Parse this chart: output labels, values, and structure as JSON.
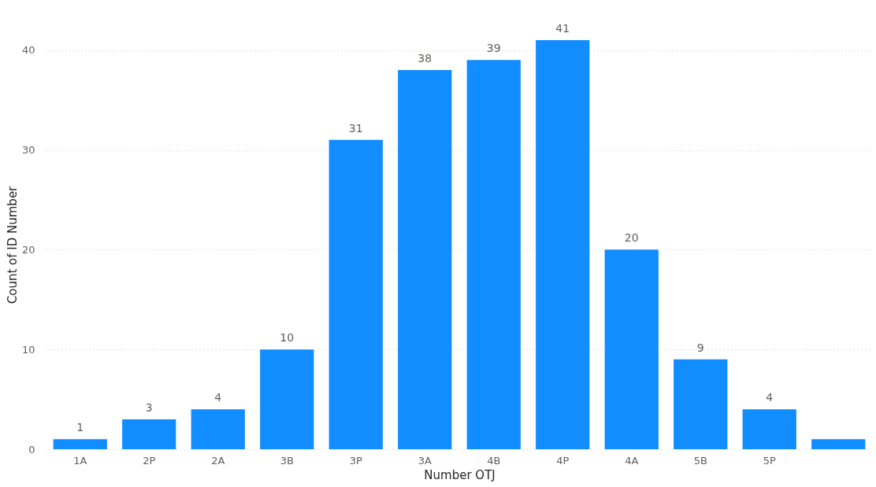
{
  "chart_data": {
    "type": "bar",
    "xlabel": "Number OTJ",
    "ylabel": "Count of ID Number",
    "categories": [
      "1A",
      "2P",
      "2A",
      "3B",
      "3P",
      "3A",
      "4B",
      "4P",
      "4A",
      "5B",
      "5P",
      null
    ],
    "values": [
      1,
      3,
      4,
      10,
      31,
      38,
      39,
      41,
      20,
      9,
      4,
      1
    ],
    "value_labels": [
      "1",
      "3",
      "4",
      "10",
      "31",
      "38",
      "39",
      "41",
      "20",
      "9",
      "4",
      null
    ],
    "color": "#118dff",
    "ylim": [
      0,
      41
    ],
    "yticks": [
      0,
      10,
      20,
      30,
      40
    ],
    "grid": "y"
  }
}
